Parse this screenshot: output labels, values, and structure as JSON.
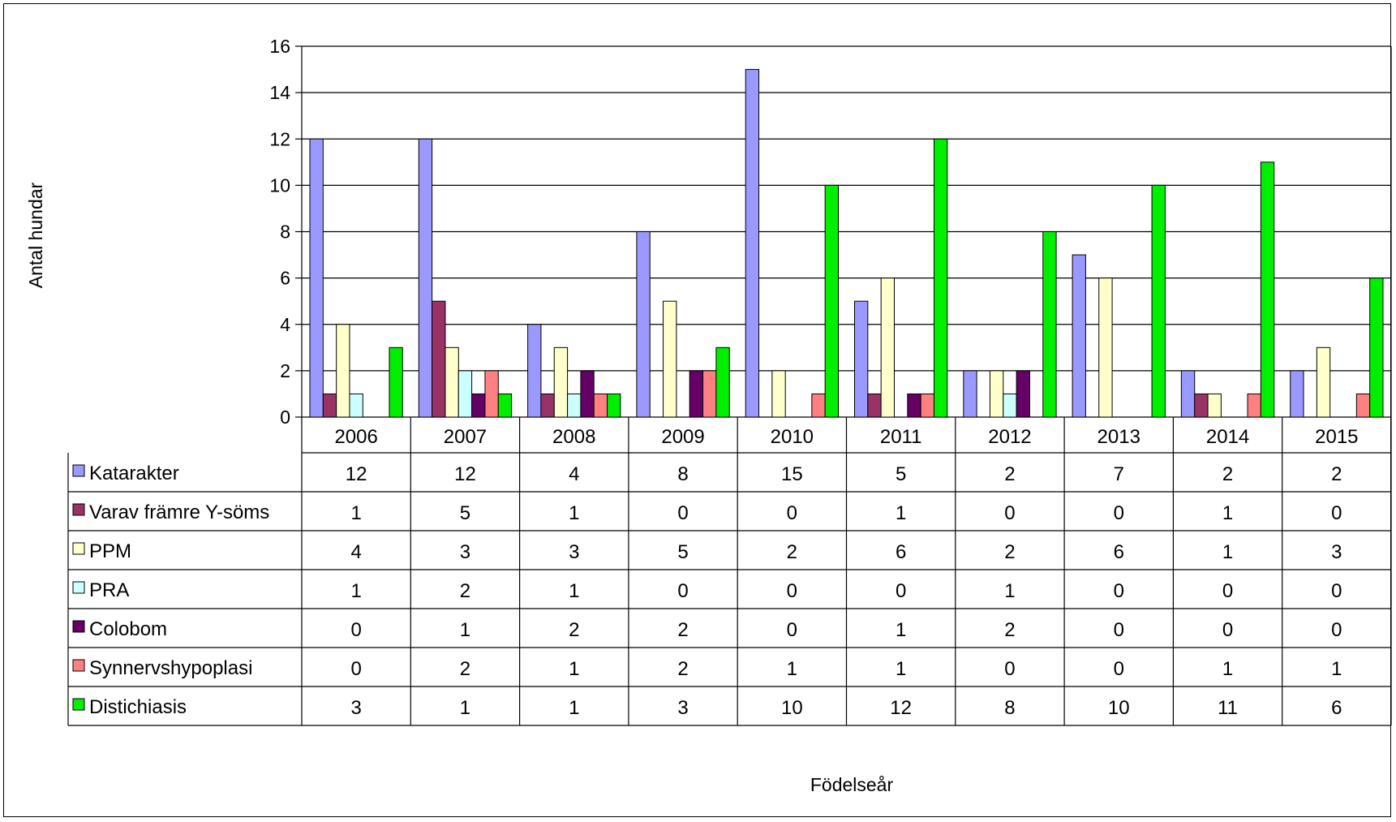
{
  "chart_data": {
    "type": "bar",
    "title": "",
    "xlabel": "Födelseår",
    "ylabel": "Antal hundar",
    "ylim": [
      0,
      16
    ],
    "yticks": [
      0,
      2,
      4,
      6,
      8,
      10,
      12,
      14,
      16
    ],
    "grid": true,
    "legend": "data-table",
    "categories": [
      "2006",
      "2007",
      "2008",
      "2009",
      "2010",
      "2011",
      "2012",
      "2013",
      "2014",
      "2015"
    ],
    "series": [
      {
        "name": "Katarakter",
        "color": "#9999ff",
        "values": [
          12,
          12,
          4,
          8,
          15,
          5,
          2,
          7,
          2,
          2
        ]
      },
      {
        "name": "Varav främre Y-söms",
        "color": "#993366",
        "values": [
          1,
          5,
          1,
          0,
          0,
          1,
          0,
          0,
          1,
          0
        ]
      },
      {
        "name": "PPM",
        "color": "#ffffcc",
        "values": [
          4,
          3,
          3,
          5,
          2,
          6,
          2,
          6,
          1,
          3
        ]
      },
      {
        "name": "PRA",
        "color": "#ccffff",
        "values": [
          1,
          2,
          1,
          0,
          0,
          0,
          1,
          0,
          0,
          0
        ]
      },
      {
        "name": "Colobom",
        "color": "#660066",
        "values": [
          0,
          1,
          2,
          2,
          0,
          1,
          2,
          0,
          0,
          0
        ]
      },
      {
        "name": "Synnervshypoplasi",
        "color": "#ff8080",
        "values": [
          0,
          2,
          1,
          2,
          1,
          1,
          0,
          0,
          1,
          1
        ]
      },
      {
        "name": "Distichiasis",
        "color": "#00ee00",
        "values": [
          3,
          1,
          1,
          3,
          10,
          12,
          8,
          10,
          11,
          6
        ]
      }
    ]
  }
}
